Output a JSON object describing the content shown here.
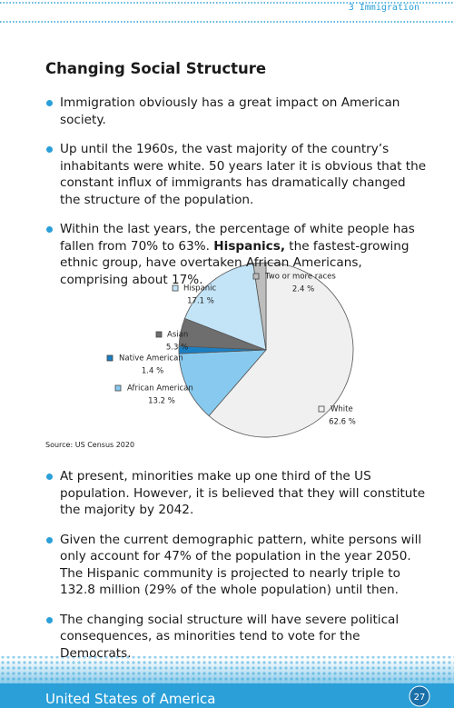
{
  "header": {
    "label": "3 Immigration"
  },
  "heading": "Changing Social Structure",
  "bullets_top": [
    [
      "Immigration obviously has a great impact on American society."
    ],
    [
      "Up until the 1960s, the vast majority of the country’s inhabitants were white. 50 years later it is obvious that the constant influx of immigrants has dramatically changed the structure of the population."
    ],
    [
      "Within the last years, the percentage of white people has fallen from 70% to 63%. ",
      "Hispanics,",
      " the fastest-growing ethnic group, have overtaken African Americans, comprising about 17%."
    ]
  ],
  "chart_data": {
    "type": "pie",
    "categories": [
      "White",
      "African American",
      "Native American",
      "Asian",
      "Hispanic",
      "Two or more races"
    ],
    "values": [
      62.6,
      13.2,
      1.4,
      5.3,
      17.1,
      2.4
    ],
    "value_labels": [
      "62.6 %",
      "13.2 %",
      "1.4 %",
      "5.3 %",
      "17.1 %",
      "2.4 %"
    ],
    "colors": [
      "#f0f0f0",
      "#88caef",
      "#1b7fc3",
      "#6e6e6e",
      "#c3e4f7",
      "#bdbdbd"
    ]
  },
  "source": "Source: US Census 2020",
  "bullets_bottom": [
    [
      "At present, minorities make up one third of the US population. However, it is believed that they will constitute the majority by 2042."
    ],
    [
      "Given the current demographic pattern, white persons will only account for 47% of the population in the year 2050. The Hispanic community is projected to nearly triple to 132.8 million (29% of the whole population) until then."
    ],
    [
      "The changing social structure will have severe political con­sequences, as minorities tend to vote for the Democrats."
    ]
  ],
  "footer": {
    "title": "United States of America",
    "page": "27"
  }
}
